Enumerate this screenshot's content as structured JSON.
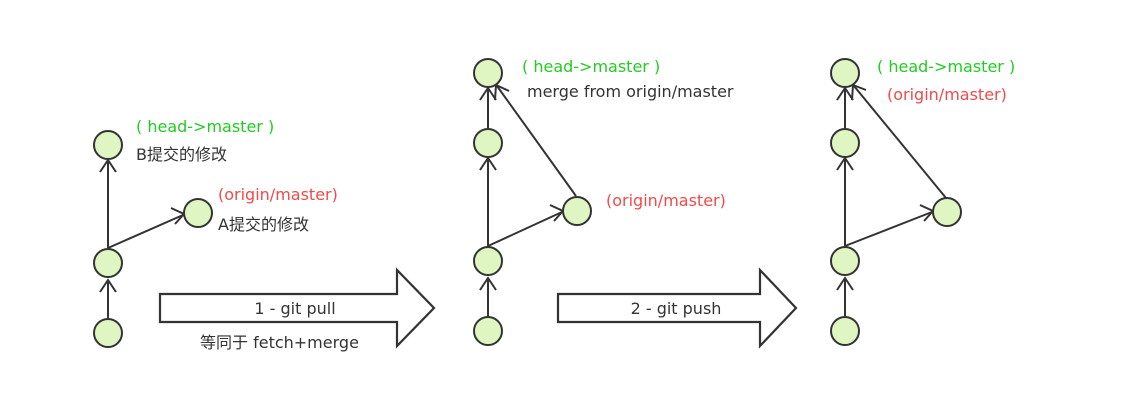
{
  "panel1": {
    "head_label": "( head->master )",
    "b_commit_label": "B提交的修改",
    "origin_label": "(origin/master)",
    "a_commit_label": "A提交的修改"
  },
  "step1": {
    "label": "1 - git pull",
    "note": "等同于 fetch+merge"
  },
  "panel2": {
    "head_label": "( head->master )",
    "merge_label": "merge from origin/master",
    "origin_label": "(origin/master)"
  },
  "step2": {
    "label": "2 - git push"
  },
  "panel3": {
    "head_label": "( head->master )",
    "origin_label": "(origin/master)"
  }
}
